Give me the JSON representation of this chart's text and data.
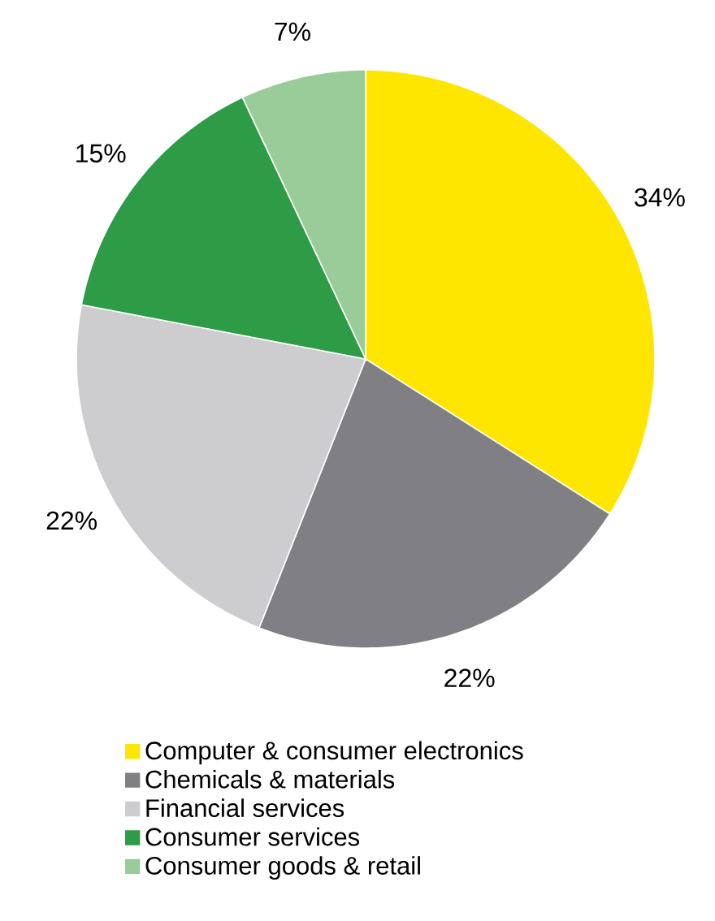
{
  "chart_data": {
    "type": "pie",
    "categories": [
      "Computer & consumer electronics",
      "Chemicals & materials",
      "Financial services",
      "Consumer services",
      "Consumer goods & retail"
    ],
    "values": [
      34,
      22,
      22,
      15,
      7
    ],
    "colors": [
      "#ffe600",
      "#808084",
      "#cdcdd0",
      "#2e9b47",
      "#99cc99"
    ],
    "value_labels": [
      "34%",
      "22%",
      "22%",
      "15%",
      "7%"
    ],
    "legend": "bottom"
  }
}
